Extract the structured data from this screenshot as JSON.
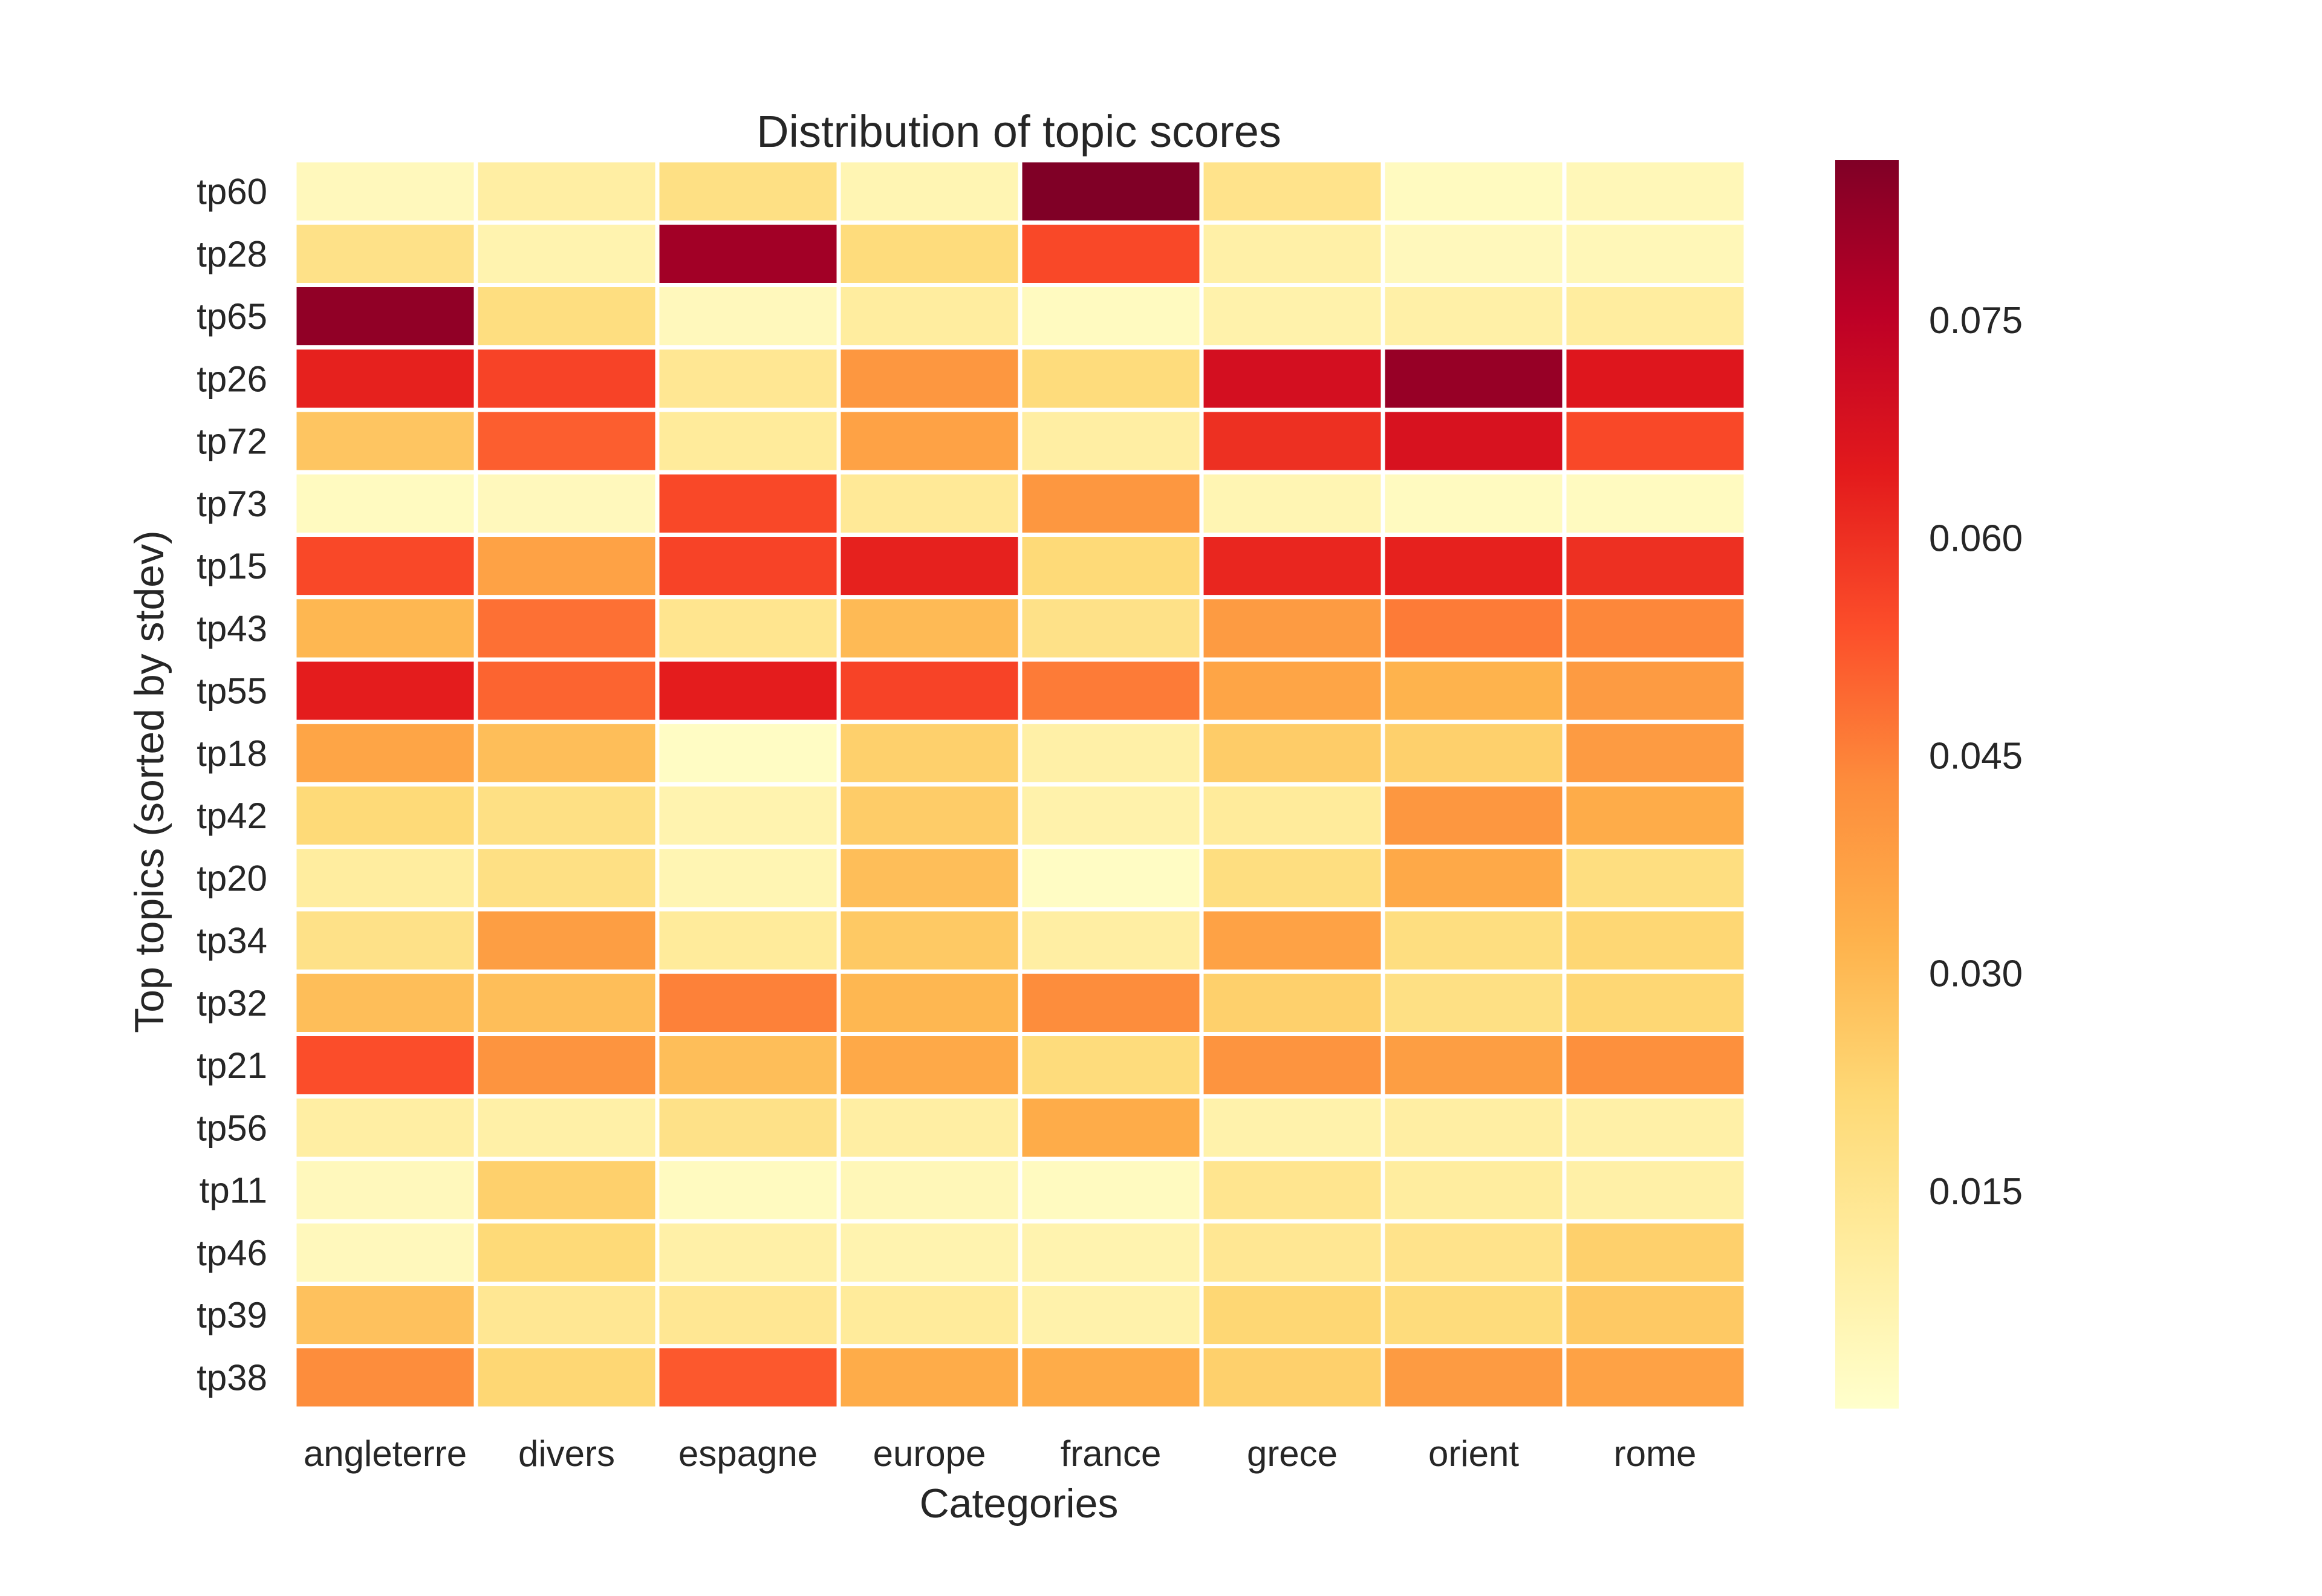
{
  "chart_data": {
    "type": "heatmap",
    "title": "Distribution of topic scores",
    "xlabel": "Categories",
    "ylabel": "Top topics (sorted by stdev)",
    "categories": [
      "angleterre",
      "divers",
      "espagne",
      "europe",
      "france",
      "grece",
      "orient",
      "rome"
    ],
    "rows": [
      "tp60",
      "tp28",
      "tp65",
      "tp26",
      "tp72",
      "tp73",
      "tp15",
      "tp43",
      "tp55",
      "tp18",
      "tp42",
      "tp20",
      "tp34",
      "tp32",
      "tp21",
      "tp56",
      "tp11",
      "tp46",
      "tp39",
      "tp38"
    ],
    "values": [
      [
        0.004,
        0.01,
        0.018,
        0.006,
        0.086,
        0.016,
        0.003,
        0.005
      ],
      [
        0.017,
        0.007,
        0.08,
        0.02,
        0.055,
        0.009,
        0.004,
        0.005
      ],
      [
        0.083,
        0.019,
        0.004,
        0.011,
        0.003,
        0.008,
        0.009,
        0.011
      ],
      [
        0.063,
        0.056,
        0.014,
        0.04,
        0.02,
        0.069,
        0.082,
        0.066
      ],
      [
        0.027,
        0.051,
        0.012,
        0.037,
        0.01,
        0.06,
        0.068,
        0.055
      ],
      [
        0.003,
        0.004,
        0.055,
        0.013,
        0.04,
        0.006,
        0.003,
        0.003
      ],
      [
        0.055,
        0.037,
        0.056,
        0.063,
        0.021,
        0.062,
        0.063,
        0.06
      ],
      [
        0.031,
        0.048,
        0.015,
        0.03,
        0.017,
        0.039,
        0.046,
        0.044
      ],
      [
        0.064,
        0.05,
        0.064,
        0.056,
        0.046,
        0.036,
        0.032,
        0.039
      ],
      [
        0.036,
        0.029,
        0.002,
        0.024,
        0.009,
        0.025,
        0.024,
        0.039
      ],
      [
        0.021,
        0.018,
        0.007,
        0.025,
        0.008,
        0.012,
        0.04,
        0.034
      ],
      [
        0.011,
        0.018,
        0.006,
        0.029,
        0.002,
        0.019,
        0.035,
        0.019
      ],
      [
        0.017,
        0.038,
        0.012,
        0.026,
        0.01,
        0.037,
        0.019,
        0.022
      ],
      [
        0.029,
        0.029,
        0.045,
        0.031,
        0.043,
        0.024,
        0.018,
        0.022
      ],
      [
        0.054,
        0.041,
        0.029,
        0.035,
        0.02,
        0.041,
        0.038,
        0.042
      ],
      [
        0.01,
        0.009,
        0.017,
        0.01,
        0.034,
        0.008,
        0.01,
        0.009
      ],
      [
        0.004,
        0.024,
        0.003,
        0.005,
        0.003,
        0.015,
        0.011,
        0.009
      ],
      [
        0.004,
        0.021,
        0.009,
        0.007,
        0.007,
        0.014,
        0.016,
        0.024
      ],
      [
        0.028,
        0.014,
        0.014,
        0.012,
        0.008,
        0.022,
        0.02,
        0.026
      ],
      [
        0.043,
        0.022,
        0.052,
        0.034,
        0.034,
        0.024,
        0.039,
        0.037
      ]
    ],
    "colorbar": {
      "colormap": "YlOrRd",
      "range": [
        0.0,
        0.086
      ],
      "ticks": [
        "0.015",
        "0.030",
        "0.045",
        "0.060",
        "0.075"
      ]
    },
    "grid": false,
    "cell_separator_color": "#ffffff"
  }
}
